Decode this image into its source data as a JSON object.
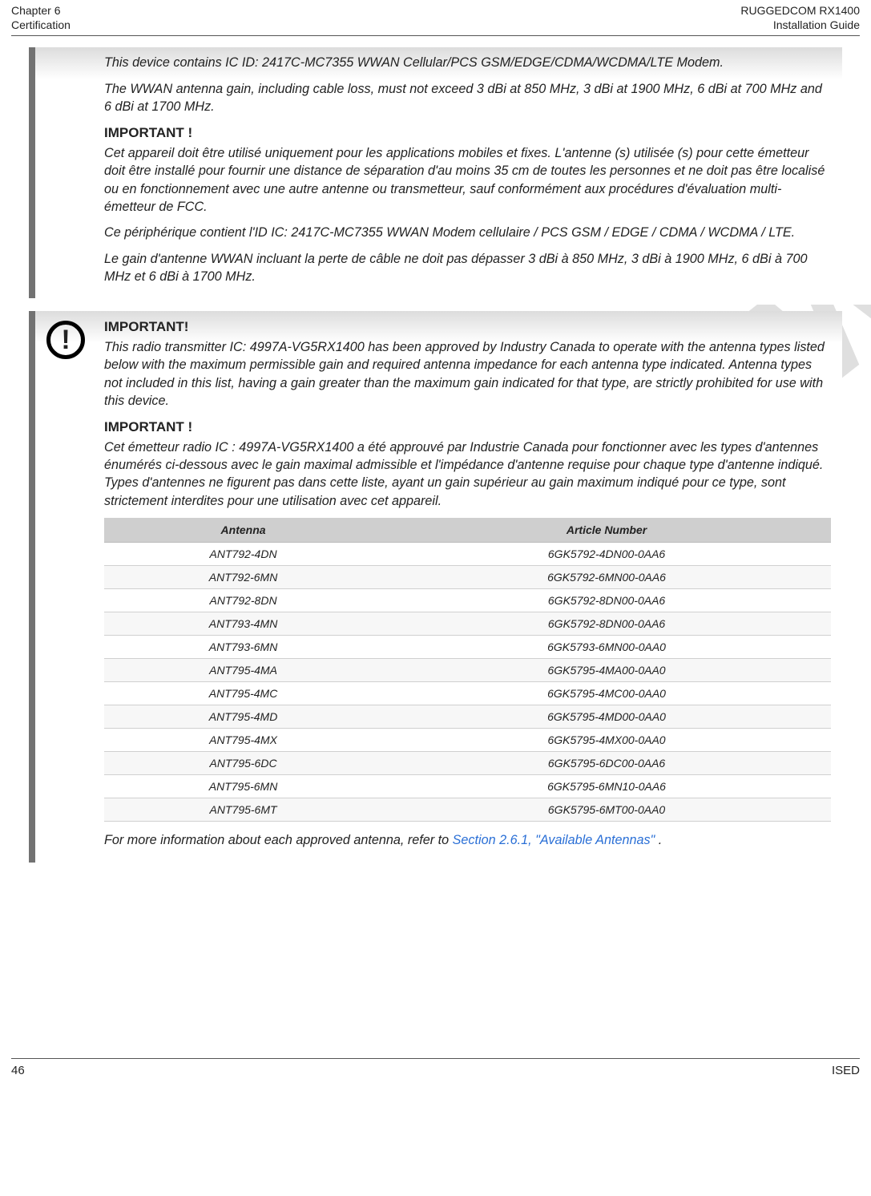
{
  "header": {
    "chapter": "Chapter 6",
    "section": "Certification",
    "product": "RUGGEDCOM RX1400",
    "doc": "Installation Guide"
  },
  "box1": {
    "p1": "This device contains IC ID: 2417C-MC7355 WWAN Cellular/PCS GSM/EDGE/CDMA/WCDMA/LTE Modem.",
    "p2": "The WWAN antenna gain, including cable loss, must not exceed 3 dBi at 850 MHz, 3 dBi at 1900 MHz, 6 dBi at 700 MHz and 6 dBi at 1700 MHz.",
    "h1": "IMPORTANT !",
    "p3": "Cet appareil doit être utilisé uniquement pour les applications mobiles et fixes. L'antenne (s) utilisée (s) pour cette émetteur doit être installé pour fournir une distance de séparation d'au moins 35 cm de toutes les personnes et ne doit pas être localisé ou en fonctionnement avec une autre antenne ou transmetteur, sauf conformément aux procédures d'évaluation multi-émetteur de FCC.",
    "p4": "Ce périphérique contient l'ID IC: 2417C-MC7355 WWAN Modem cellulaire / PCS GSM / EDGE / CDMA / WCDMA / LTE.",
    "p5": "Le gain d'antenne WWAN incluant la perte de câble ne doit pas dépasser 3 dBi à 850 MHz, 3 dBi à 1900 MHz, 6 dBi à 700 MHz et 6 dBi à 1700 MHz."
  },
  "box2": {
    "h1": "IMPORTANT!",
    "p1": "This radio transmitter IC: 4997A-VG5RX1400 has been approved by Industry Canada to operate with the antenna types listed below with the maximum permissible gain and required antenna impedance for each antenna type indicated. Antenna types not included in this list, having a gain greater than the maximum gain indicated for that type, are strictly prohibited for use with this device.",
    "h2": "IMPORTANT !",
    "p2": "Cet émetteur radio IC : 4997A-VG5RX1400 a été approuvé par Industrie Canada pour fonctionner avec les types d'antennes énumérés ci-dessous avec le gain maximal admissible et l'impédance d'antenne requise pour chaque type d'antenne indiqué. Types d'antennes ne figurent pas dans cette liste, ayant un gain supérieur au gain maximum indiqué pour ce type, sont strictement interdites pour une utilisation avec cet appareil.",
    "table": {
      "col1": "Antenna",
      "col2": "Article Number",
      "rows": [
        [
          "ANT792-4DN",
          "6GK5792-4DN00-0AA6"
        ],
        [
          "ANT792-6MN",
          "6GK5792-6MN00-0AA6"
        ],
        [
          "ANT792-8DN",
          "6GK5792-8DN00-0AA6"
        ],
        [
          "ANT793-4MN",
          "6GK5792-8DN00-0AA6"
        ],
        [
          "ANT793-6MN",
          "6GK5793-6MN00-0AA0"
        ],
        [
          "ANT795-4MA",
          "6GK5795-4MA00-0AA0"
        ],
        [
          "ANT795-4MC",
          "6GK5795-4MC00-0AA0"
        ],
        [
          "ANT795-4MD",
          "6GK5795-4MD00-0AA0"
        ],
        [
          "ANT795-4MX",
          "6GK5795-4MX00-0AA0"
        ],
        [
          "ANT795-6DC",
          "6GK5795-6DC00-0AA6"
        ],
        [
          "ANT795-6MN",
          "6GK5795-6MN10-0AA6"
        ],
        [
          "ANT795-6MT",
          "6GK5795-6MT00-0AA0"
        ]
      ]
    },
    "p3_prefix": "For more information about each approved antenna, refer to  ",
    "p3_link": "Section 2.6.1, \"Available Antennas\"",
    "p3_suffix": " ."
  },
  "footer": {
    "page": "46",
    "right": "ISED"
  },
  "colors": {
    "border": "#727272",
    "grad_top": "#dcdcdc",
    "link": "#2a6fd6"
  }
}
